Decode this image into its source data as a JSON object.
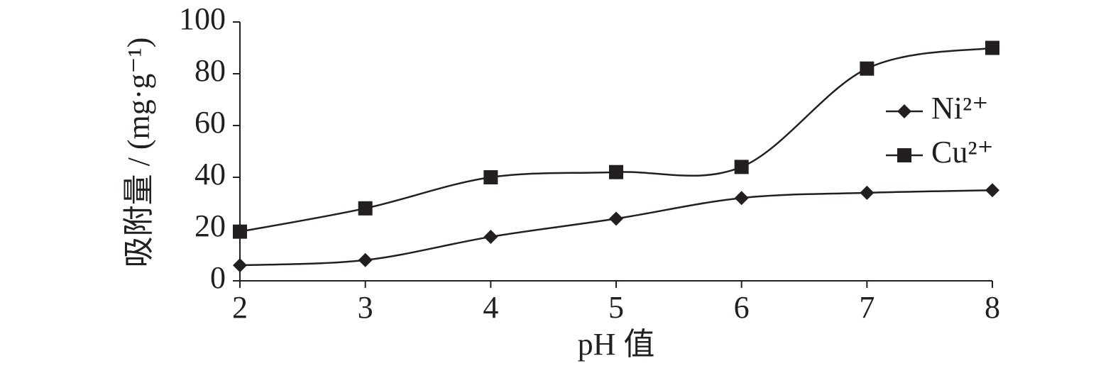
{
  "chart_data": {
    "type": "line",
    "x_label": "pH 值",
    "y_label": "吸附量 / (mg·g⁻¹)",
    "x": [
      2,
      3,
      4,
      5,
      6,
      7,
      8
    ],
    "series": [
      {
        "name": "Ni²⁺",
        "color": "#231f20",
        "marker": "diamond",
        "values": [
          6,
          8,
          17,
          24,
          32,
          34,
          35
        ]
      },
      {
        "name": "Cu²⁺",
        "color": "#231f20",
        "marker": "square",
        "values": [
          19,
          28,
          40,
          42,
          44,
          82,
          90
        ]
      }
    ],
    "xlim": [
      2,
      8
    ],
    "xticks": [
      2,
      3,
      4,
      5,
      6,
      7,
      8
    ],
    "ylim": [
      0,
      100
    ],
    "yticks": [
      0,
      20,
      40,
      60,
      80,
      100
    ],
    "smooth": true,
    "grid": false,
    "legend": "right"
  }
}
